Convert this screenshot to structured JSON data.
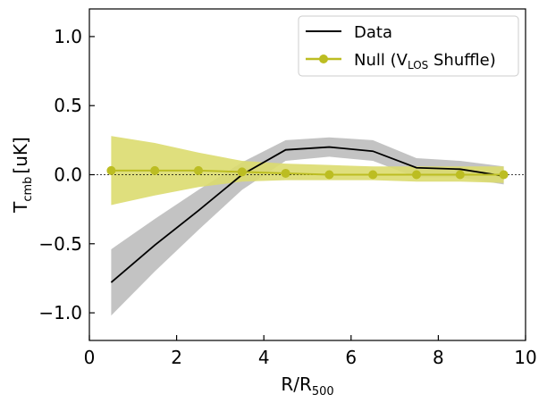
{
  "chart_data": {
    "type": "line",
    "title": "",
    "xlabel": {
      "main": "R/R",
      "sub": "500"
    },
    "ylabel": {
      "main": "T",
      "sub": "cmb",
      "unit": "[uK]"
    },
    "xlim": [
      0,
      10
    ],
    "ylim": [
      -1.2,
      1.2
    ],
    "xticks": [
      0,
      2,
      4,
      6,
      8,
      10
    ],
    "yticks": [
      1.0,
      0.5,
      0.0,
      -0.5,
      -1.0
    ],
    "xtick_labels": [
      "0",
      "2",
      "4",
      "6",
      "8",
      "10"
    ],
    "ytick_labels": [
      "1.0",
      "0.5",
      "0.0",
      "−0.5",
      "−1.0"
    ],
    "reference_line": {
      "y": 0,
      "style": "dashed"
    },
    "legend_position": "top-right",
    "series": [
      {
        "name": "Data",
        "legend_label": {
          "before": "Data",
          "sub": "",
          "after": ""
        },
        "color": "#000000",
        "band_color": "#bdbdbd",
        "marker": "none",
        "x": [
          0.5,
          1.5,
          2.5,
          3.5,
          4.5,
          5.5,
          6.5,
          7.5,
          8.5,
          9.5
        ],
        "y": [
          -0.78,
          -0.51,
          -0.26,
          0.0,
          0.18,
          0.2,
          0.17,
          0.05,
          0.04,
          -0.01
        ],
        "upper": [
          -0.54,
          -0.32,
          -0.11,
          0.09,
          0.25,
          0.27,
          0.25,
          0.12,
          0.1,
          0.06
        ],
        "lower": [
          -1.02,
          -0.7,
          -0.4,
          -0.11,
          0.1,
          0.13,
          0.1,
          -0.02,
          -0.02,
          -0.07
        ]
      },
      {
        "name": "Null (VLOS Shuffle)",
        "legend_label": {
          "before": "Null (V",
          "sub": "LOS",
          "after": " Shuffle)"
        },
        "color": "#bcbd22",
        "band_color": "#dbdb6f",
        "marker": "circle",
        "x": [
          0.5,
          1.5,
          2.5,
          3.5,
          4.5,
          5.5,
          6.5,
          7.5,
          8.5,
          9.5
        ],
        "y": [
          0.03,
          0.03,
          0.03,
          0.02,
          0.01,
          0.0,
          0.0,
          0.0,
          0.0,
          0.0
        ],
        "upper": [
          0.28,
          0.23,
          0.16,
          0.1,
          0.08,
          0.07,
          0.06,
          0.06,
          0.06,
          0.06
        ],
        "lower": [
          -0.22,
          -0.15,
          -0.09,
          -0.05,
          -0.04,
          -0.04,
          -0.04,
          -0.05,
          -0.05,
          -0.06
        ]
      }
    ]
  }
}
